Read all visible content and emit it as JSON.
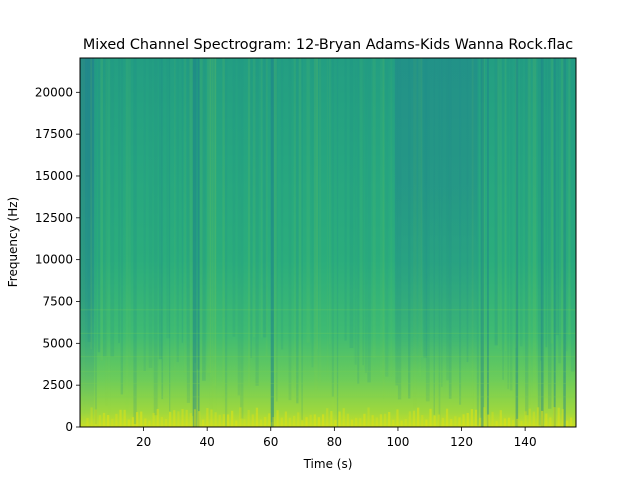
{
  "chart_data": {
    "type": "heatmap",
    "title": "Mixed Channel Spectrogram: 12-Bryan Adams-Kids Wanna Rock.flac",
    "xlabel": "Time (s)",
    "ylabel": "Frequency (Hz)",
    "xlim": [
      0,
      156
    ],
    "ylim": [
      0,
      22050
    ],
    "xticks": [
      20,
      40,
      60,
      80,
      100,
      120,
      140
    ],
    "xtick_labels": [
      "20",
      "40",
      "60",
      "80",
      "100",
      "120",
      "140"
    ],
    "yticks": [
      0,
      2500,
      5000,
      7500,
      10000,
      12500,
      15000,
      17500,
      20000
    ],
    "ytick_labels": [
      "0",
      "2500",
      "5000",
      "7500",
      "10000",
      "12500",
      "15000",
      "17500",
      "20000"
    ],
    "colormap": "viridis",
    "grid": false,
    "legend": "none",
    "notes": "Energy highest below ~2500 Hz across the track; darker (lower energy) high-frequency region at the start (0-4 s) and between ~100-125 s; dark vertical breaks near 36 s, 60 s and 126 s."
  }
}
